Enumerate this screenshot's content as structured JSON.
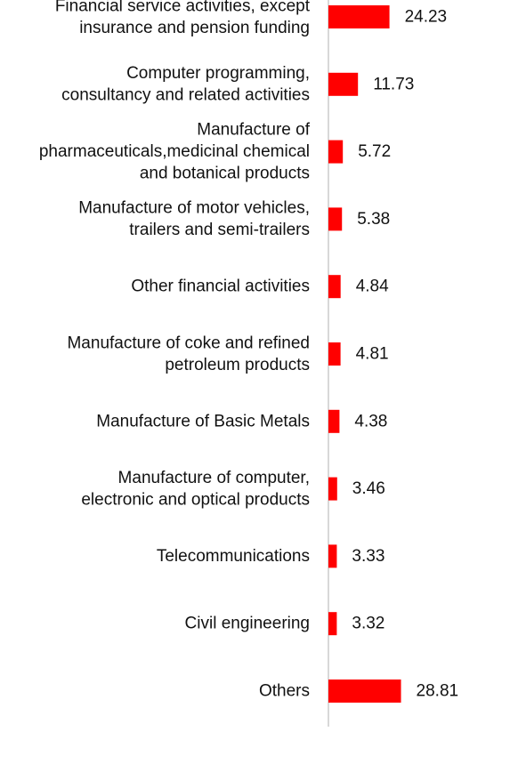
{
  "chart_data": {
    "type": "bar",
    "orientation": "horizontal",
    "categories": [
      [
        "Financial service activities, except",
        "insurance and pension funding"
      ],
      [
        "Computer programming,",
        "consultancy and related activities"
      ],
      [
        "Manufacture of",
        "pharmaceuticals,medicinal chemical",
        "and botanical products"
      ],
      [
        "Manufacture of motor vehicles,",
        "trailers and semi-trailers"
      ],
      [
        "Other financial activities"
      ],
      [
        "Manufacture of coke and refined",
        "petroleum products"
      ],
      [
        "Manufacture of Basic Metals"
      ],
      [
        "Manufacture of computer,",
        "electronic and optical products"
      ],
      [
        "Telecommunications"
      ],
      [
        "Civil engineering"
      ],
      [
        "Others"
      ]
    ],
    "values": [
      24.23,
      11.73,
      5.72,
      5.38,
      4.84,
      4.81,
      4.38,
      3.46,
      3.33,
      3.32,
      28.81
    ],
    "value_labels": [
      "24.23",
      "11.73",
      "5.72",
      "5.38",
      "4.84",
      "4.81",
      "4.38",
      "3.46",
      "3.33",
      "3.32",
      "28.81"
    ],
    "bar_color": "#ff0000",
    "axis_color": "#cccccc",
    "grid": false,
    "legend": "none"
  }
}
